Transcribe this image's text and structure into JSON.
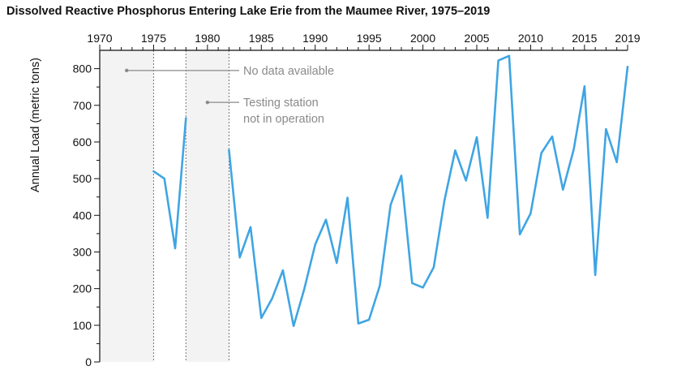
{
  "chart_data": {
    "type": "line",
    "title": "Dissolved Reactive Phosphorus Entering Lake Erie from the Maumee River, 1975–2019",
    "xlabel": "",
    "ylabel": "Annual Load (metric tons)",
    "xlim": [
      1970,
      2019
    ],
    "ylim": [
      0,
      850
    ],
    "x_ticks": [
      1970,
      1975,
      1980,
      1985,
      1990,
      1995,
      2000,
      2005,
      2010,
      2015,
      2019
    ],
    "y_ticks": [
      0,
      100,
      200,
      300,
      400,
      500,
      600,
      700,
      800
    ],
    "x_axis_position": "top",
    "grid": false,
    "shaded_regions": [
      {
        "from": 1970,
        "to": 1975,
        "annotation": "No data available"
      },
      {
        "from": 1978,
        "to": 1982,
        "annotation": "Testing station not in operation"
      }
    ],
    "annotations": [
      {
        "text": "No data available",
        "anchor_year": 1972.5,
        "anchor_value": 795
      },
      {
        "text": "Testing station",
        "text2": "not in operation",
        "anchor_year": 1980,
        "anchor_value": 708
      }
    ],
    "series": [
      {
        "color": "#3fa5e3",
        "segments": [
          {
            "x": [
              1975,
              1976,
              1977,
              1978
            ],
            "y": [
              520,
              500,
              310,
              665
            ]
          },
          {
            "x": [
              1982,
              1983,
              1984,
              1985,
              1986,
              1987,
              1988,
              1989,
              1990,
              1991,
              1992,
              1993,
              1994,
              1995,
              1996,
              1997,
              1998,
              1999,
              2000,
              2001,
              2002,
              2003,
              2004,
              2005,
              2006,
              2007,
              2008,
              2009,
              2010,
              2011,
              2012,
              2013,
              2014,
              2015,
              2016,
              2017,
              2018,
              2019
            ],
            "y": [
              578,
              285,
              368,
              120,
              173,
              250,
              98,
              200,
              320,
              388,
              270,
              448,
              105,
              115,
              208,
              428,
              508,
              215,
              203,
              258,
              440,
              577,
              495,
              613,
              393,
              822,
              835,
              348,
              405,
              570,
              615,
              470,
              580,
              752,
              237,
              635,
              545,
              805
            ]
          }
        ]
      }
    ]
  }
}
